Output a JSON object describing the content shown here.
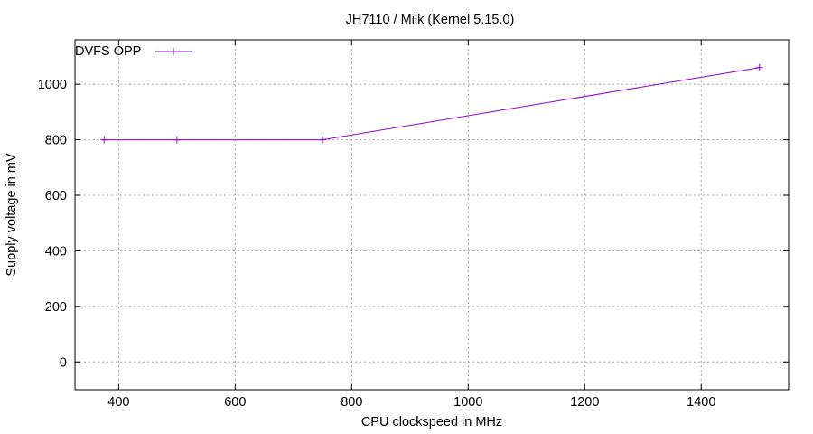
{
  "chart_data": {
    "type": "line",
    "title": "JH7110 / Milk (Kernel 5.15.0)",
    "xlabel": "CPU clockspeed in MHz",
    "ylabel": "Supply voltage in mV",
    "xlim": [
      325,
      1550
    ],
    "ylim": [
      -100,
      1160
    ],
    "xticks": [
      400,
      600,
      800,
      1000,
      1200,
      1400
    ],
    "yticks": [
      0,
      200,
      400,
      600,
      800,
      1000
    ],
    "grid": true,
    "legend_position": "top-left",
    "series": [
      {
        "name": "DVFS OPP",
        "color": "#9400d3",
        "marker": "plus",
        "x": [
          375,
          500,
          750,
          1500
        ],
        "y": [
          800,
          800,
          800,
          1060
        ]
      }
    ]
  }
}
